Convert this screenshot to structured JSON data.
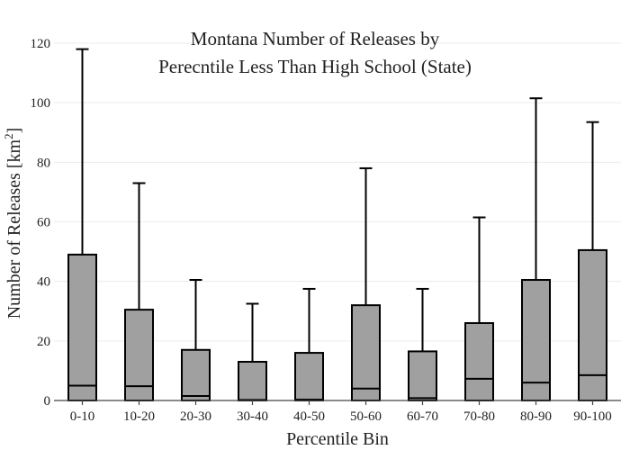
{
  "chart_data": {
    "type": "box",
    "title_line1": "Montana Number of Releases by",
    "title_line2": "Perecntile Less Than High School (State)",
    "xlabel": "Percentile Bin",
    "ylabel_main": "Number of Releases  [km",
    "ylabel_sup": "2",
    "ylabel_close": "]",
    "ylim": [
      0,
      120
    ],
    "yticks": [
      0,
      20,
      40,
      60,
      80,
      100,
      120
    ],
    "grid": true,
    "colors": {
      "box_fill": "#a0a0a0",
      "outline": "#000000",
      "grid": "#ececec"
    },
    "categories": [
      "0-10",
      "10-20",
      "20-30",
      "30-40",
      "40-50",
      "50-60",
      "60-70",
      "70-80",
      "80-90",
      "90-100"
    ],
    "boxes": [
      {
        "min": 0,
        "q1": 0,
        "median": 5,
        "q3": 49,
        "max": 118
      },
      {
        "min": 0,
        "q1": 0,
        "median": 4.8,
        "q3": 30.5,
        "max": 73
      },
      {
        "min": 0,
        "q1": 0,
        "median": 1.5,
        "q3": 17,
        "max": 40.5
      },
      {
        "min": 0,
        "q1": 0,
        "median": 0.2,
        "q3": 13,
        "max": 32.5
      },
      {
        "min": 0,
        "q1": 0,
        "median": 0.3,
        "q3": 16,
        "max": 37.5
      },
      {
        "min": 0,
        "q1": 0,
        "median": 4,
        "q3": 32,
        "max": 78
      },
      {
        "min": 0,
        "q1": 0,
        "median": 0.8,
        "q3": 16.5,
        "max": 37.5
      },
      {
        "min": 0,
        "q1": 0,
        "median": 7.3,
        "q3": 26,
        "max": 61.5
      },
      {
        "min": 0,
        "q1": 0,
        "median": 6,
        "q3": 40.5,
        "max": 101.5
      },
      {
        "min": 0,
        "q1": 0,
        "median": 8.5,
        "q3": 50.5,
        "max": 93.5
      }
    ]
  }
}
